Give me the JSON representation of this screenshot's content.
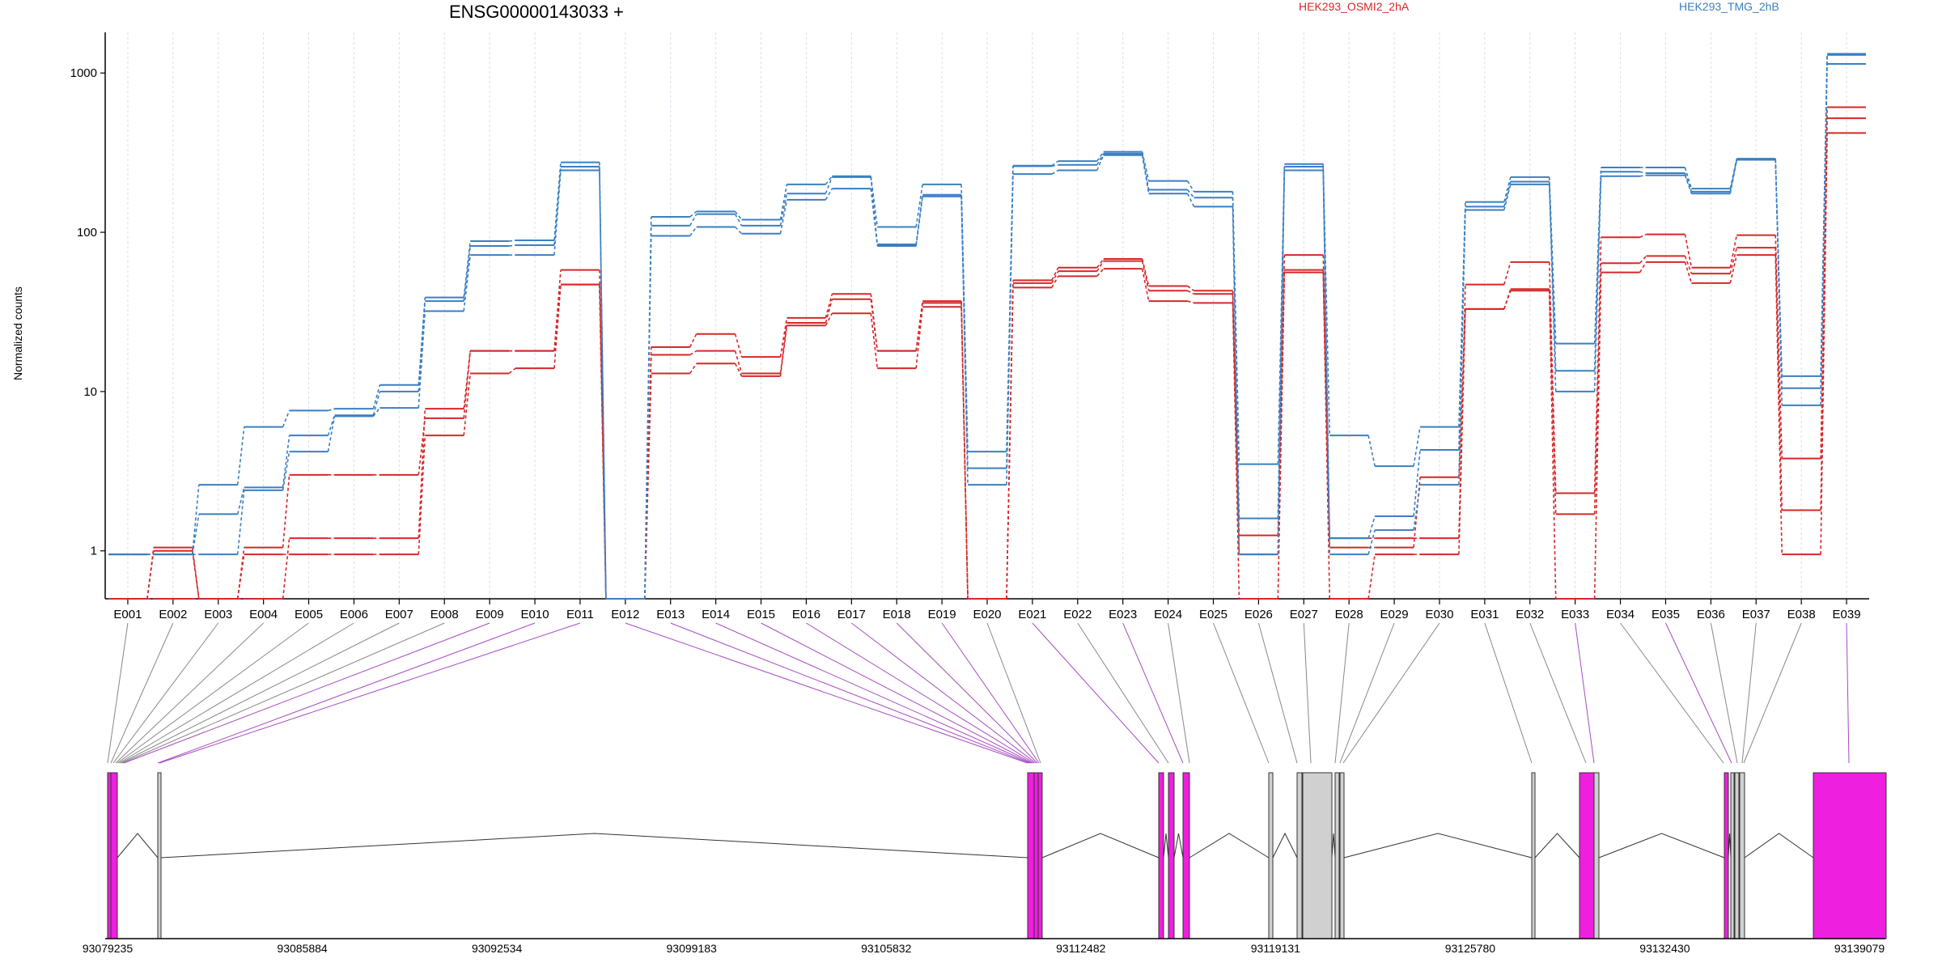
{
  "chart_data": {
    "type": "line",
    "title": "ENSG00000143033 +",
    "xlabel": "",
    "ylabel": "Normalized counts",
    "yscale": "log",
    "ylim": [
      0.5,
      1800
    ],
    "yticks": [
      1,
      10,
      100,
      1000
    ],
    "ytick_labels": [
      "1",
      "10",
      "100",
      "1000"
    ],
    "grid": "vertical dotted per exon",
    "legend": [
      {
        "label": "HEK293_OSMI2_2hA",
        "color": "#d62728",
        "position": "top-center"
      },
      {
        "label": "HEK293_TMG_2hB",
        "color": "#3a7fc1",
        "position": "top-right"
      }
    ],
    "categories": [
      "E001",
      "E002",
      "E003",
      "E004",
      "E005",
      "E006",
      "E007",
      "E008",
      "E009",
      "E010",
      "E011",
      "E012",
      "E013",
      "E014",
      "E015",
      "E016",
      "E017",
      "E018",
      "E019",
      "E020",
      "E021",
      "E022",
      "E023",
      "E024",
      "E025",
      "E026",
      "E027",
      "E028",
      "E029",
      "E030",
      "E031",
      "E032",
      "E033",
      "E034",
      "E035",
      "E036",
      "E037",
      "E038",
      "E039"
    ],
    "series": [
      {
        "group": "red",
        "color": "#d62728",
        "values": [
          0.5,
          1.05,
          0.5,
          0.5,
          1.2,
          1.2,
          1.2,
          7.8,
          18,
          18,
          58,
          0.5,
          19,
          23,
          16.5,
          29,
          41,
          18,
          37,
          0.5,
          50,
          60,
          68,
          46,
          43,
          1.25,
          72,
          1.2,
          1.2,
          1.2,
          47,
          65,
          2.3,
          93,
          97,
          60,
          96,
          3.8,
          610
        ]
      },
      {
        "group": "red",
        "color": "#d62728",
        "values": [
          0.5,
          1.0,
          0.5,
          1.05,
          3.0,
          3.0,
          3.0,
          6.8,
          18,
          18,
          47,
          0.5,
          17,
          18,
          13,
          27,
          38,
          18,
          36,
          0.5,
          48,
          57,
          66,
          43,
          41,
          0.95,
          58,
          1.05,
          1.05,
          2.9,
          33,
          44,
          1.7,
          64,
          71,
          55,
          80,
          1.8,
          520
        ]
      },
      {
        "group": "red",
        "color": "#d62728",
        "values": [
          0.5,
          0.5,
          0.5,
          0.95,
          0.95,
          0.95,
          0.95,
          5.3,
          13,
          14,
          47,
          0.5,
          13,
          15,
          12.5,
          26,
          31,
          14,
          34,
          0.5,
          45,
          53,
          59,
          37,
          36,
          0.5,
          56,
          0.5,
          0.95,
          0.95,
          33,
          43,
          0.5,
          56,
          65,
          48,
          72,
          0.95,
          420
        ]
      },
      {
        "group": "blue",
        "color": "#3a7fc1",
        "values": [
          0.95,
          0.95,
          2.6,
          6.0,
          7.6,
          7.8,
          11,
          39,
          88,
          89,
          275,
          0.5,
          125,
          135,
          120,
          200,
          225,
          108,
          200,
          4.2,
          262,
          280,
          320,
          210,
          180,
          3.5,
          268,
          5.3,
          3.4,
          6.0,
          155,
          222,
          20,
          255,
          255,
          188,
          290,
          12.5,
          1320
        ]
      },
      {
        "group": "blue",
        "color": "#3a7fc1",
        "values": [
          0.95,
          0.95,
          1.7,
          2.5,
          5.3,
          7.1,
          10,
          37,
          82,
          83,
          258,
          0.5,
          110,
          130,
          110,
          175,
          222,
          84,
          172,
          3.3,
          260,
          265,
          312,
          185,
          165,
          1.6,
          258,
          1.2,
          1.65,
          4.3,
          145,
          208,
          13.5,
          240,
          235,
          180,
          285,
          10.5,
          1300
        ]
      },
      {
        "group": "blue",
        "color": "#3a7fc1",
        "values": [
          0.95,
          0.95,
          0.95,
          2.4,
          4.2,
          7.0,
          7.9,
          32,
          72,
          72,
          245,
          0.5,
          95,
          108,
          98,
          160,
          188,
          82,
          168,
          2.6,
          232,
          245,
          305,
          175,
          145,
          0.95,
          245,
          0.95,
          1.35,
          2.6,
          138,
          200,
          10,
          225,
          228,
          175,
          285,
          8.2,
          1140
        ]
      }
    ]
  },
  "gene_model": {
    "axis_ticks": [
      "93079235",
      "93085884",
      "93092534",
      "93099183",
      "93105832",
      "93112482",
      "93119131",
      "93125780",
      "93132430",
      "93139079"
    ],
    "exon_colors": {
      "normal": "#d0d0d0",
      "significant": "#ee1fdf"
    }
  }
}
